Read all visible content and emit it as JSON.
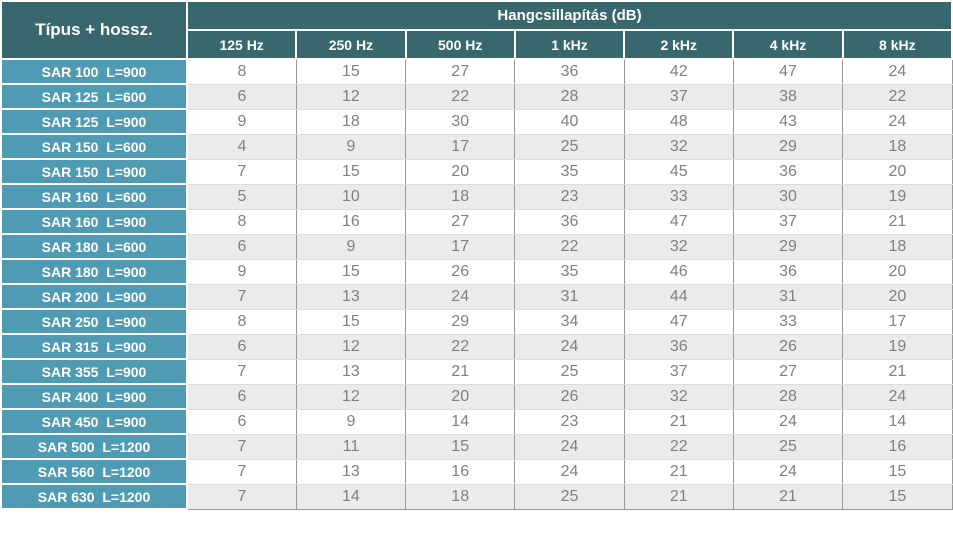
{
  "chart_data": {
    "type": "table",
    "title": "Hangcsillapítás (dB)",
    "corner_header": "Típus + hossz.",
    "columns": [
      "125 Hz",
      "250 Hz",
      "500 Hz",
      "1 kHz",
      "2 kHz",
      "4 kHz",
      "8 kHz"
    ],
    "rows": [
      {
        "label": "SAR 100  L=900",
        "values": [
          8,
          15,
          27,
          36,
          42,
          47,
          24
        ]
      },
      {
        "label": "SAR 125  L=600",
        "values": [
          6,
          12,
          22,
          28,
          37,
          38,
          22
        ]
      },
      {
        "label": "SAR 125  L=900",
        "values": [
          9,
          18,
          30,
          40,
          48,
          43,
          24
        ]
      },
      {
        "label": "SAR 150  L=600",
        "values": [
          4,
          9,
          17,
          25,
          32,
          29,
          18
        ]
      },
      {
        "label": "SAR 150  L=900",
        "values": [
          7,
          15,
          20,
          35,
          45,
          36,
          20
        ]
      },
      {
        "label": "SAR 160  L=600",
        "values": [
          5,
          10,
          18,
          23,
          33,
          30,
          19
        ]
      },
      {
        "label": "SAR 160  L=900",
        "values": [
          8,
          16,
          27,
          36,
          47,
          37,
          21
        ]
      },
      {
        "label": "SAR 180  L=600",
        "values": [
          6,
          9,
          17,
          22,
          32,
          29,
          18
        ]
      },
      {
        "label": "SAR 180  L=900",
        "values": [
          9,
          15,
          26,
          35,
          46,
          36,
          20
        ]
      },
      {
        "label": "SAR 200  L=900",
        "values": [
          7,
          13,
          24,
          31,
          44,
          31,
          20
        ]
      },
      {
        "label": "SAR 250  L=900",
        "values": [
          8,
          15,
          29,
          34,
          47,
          33,
          17
        ]
      },
      {
        "label": "SAR 315  L=900",
        "values": [
          6,
          12,
          22,
          24,
          36,
          26,
          19
        ]
      },
      {
        "label": "SAR 355  L=900",
        "values": [
          7,
          13,
          21,
          25,
          37,
          27,
          21
        ]
      },
      {
        "label": "SAR 400  L=900",
        "values": [
          6,
          12,
          20,
          26,
          32,
          28,
          24
        ]
      },
      {
        "label": "SAR 450  L=900",
        "values": [
          6,
          9,
          14,
          23,
          21,
          24,
          14
        ]
      },
      {
        "label": "SAR 500  L=1200",
        "values": [
          7,
          11,
          15,
          24,
          22,
          25,
          16
        ]
      },
      {
        "label": "SAR 560  L=1200",
        "values": [
          7,
          13,
          16,
          24,
          21,
          24,
          15
        ]
      },
      {
        "label": "SAR 630  L=1200",
        "values": [
          7,
          14,
          18,
          25,
          21,
          21,
          15
        ]
      }
    ],
    "layout": {
      "grid": true,
      "striped_rows": true,
      "header_position": "top"
    }
  },
  "colors": {
    "header_bg": "#39676E",
    "row_label_bg": "#4E9BB3",
    "alt_row_bg": "#EBEBEB",
    "data_text": "#808080",
    "grid_line": "#999999"
  }
}
